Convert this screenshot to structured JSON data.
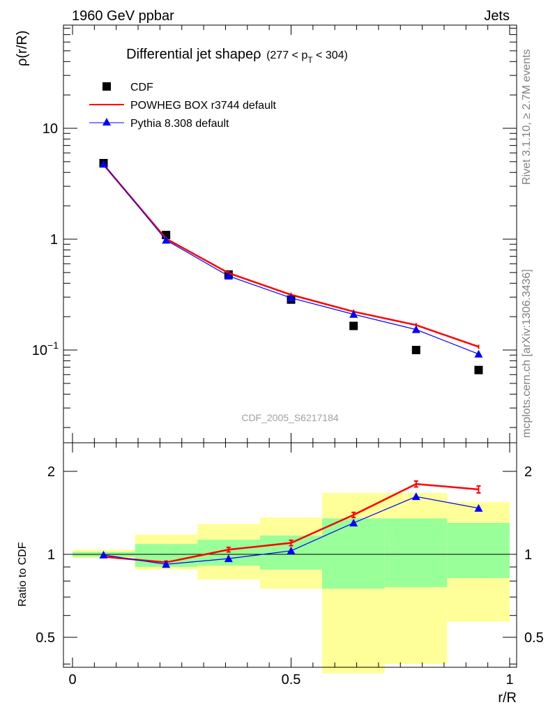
{
  "header": {
    "left": "1960 GeV ppbar",
    "right": "Jets"
  },
  "side_labels": {
    "rivet": "Rivet 3.1.10, ≥ 2.7M events",
    "mcplots": "mcplots.cern.ch [arXiv:1306.3436]"
  },
  "watermark": "CDF_2005_S6217184",
  "chart_data": [
    {
      "type": "line",
      "title": "Differential jet shape",
      "title_symbol": "ρ",
      "title_range": "(277 < p",
      "title_range_sub": "T",
      "title_range_end": " < 304)",
      "ylabel": "ρ(r/R)",
      "yscale": "log",
      "xlim": [
        0,
        1
      ],
      "ylim": [
        0.02,
        45
      ],
      "y_ticks": [
        {
          "value": 10,
          "label": "10"
        },
        {
          "value": 1,
          "label": "1"
        },
        {
          "value": 0.1,
          "label": "10",
          "exponent": "−1"
        }
      ],
      "legend_position": "top-left",
      "legend": [
        {
          "label": "CDF",
          "marker": "square",
          "color": "#000000"
        },
        {
          "label": "POWHEG BOX r3744 default",
          "marker": "line",
          "color": "#ff0000"
        },
        {
          "label": "Pythia 8.308 default",
          "marker": "triangle",
          "color": "#0000ff"
        }
      ],
      "x": [
        0.071,
        0.214,
        0.357,
        0.5,
        0.643,
        0.786,
        0.929
      ],
      "series": [
        {
          "name": "CDF",
          "color": "#000000",
          "marker": "square",
          "values": [
            4.85,
            1.09,
            0.48,
            0.285,
            0.165,
            0.1,
            0.066
          ]
        },
        {
          "name": "POWHEG BOX r3744 default",
          "color": "#ff0000",
          "marker": "none",
          "values": [
            4.7,
            1.01,
            0.495,
            0.315,
            0.222,
            0.168,
            0.107
          ]
        },
        {
          "name": "Pythia 8.308 default",
          "color": "#0000ff",
          "marker": "triangle",
          "values": [
            4.75,
            0.98,
            0.465,
            0.295,
            0.21,
            0.153,
            0.092
          ]
        }
      ]
    },
    {
      "type": "line",
      "ylabel": "Ratio to CDF",
      "xlabel": "r/R",
      "yscale": "log",
      "xlim": [
        0,
        1
      ],
      "ylim": [
        0.4,
        2.4
      ],
      "y_ticks": [
        {
          "value": 2,
          "label": "2"
        },
        {
          "value": 1,
          "label": "1"
        },
        {
          "value": 0.5,
          "label": "0.5"
        }
      ],
      "x_ticks": [
        {
          "value": 0,
          "label": "0"
        },
        {
          "value": 0.5,
          "label": "0.5"
        },
        {
          "value": 1,
          "label": "1"
        }
      ],
      "bands": {
        "bins": [
          0,
          0.143,
          0.286,
          0.429,
          0.571,
          0.714,
          0.857,
          1.0
        ],
        "outer": {
          "color": "#ffff99",
          "low": [
            0.97,
            0.88,
            0.81,
            0.75,
            0.37,
            0.4,
            0.57
          ],
          "high": [
            1.04,
            1.18,
            1.29,
            1.36,
            1.67,
            1.67,
            1.55
          ]
        },
        "inner": {
          "color": "#99ff99",
          "low": [
            0.98,
            0.9,
            0.91,
            0.88,
            0.75,
            0.76,
            0.82
          ],
          "high": [
            1.02,
            1.09,
            1.13,
            1.17,
            1.35,
            1.35,
            1.3
          ]
        }
      },
      "x": [
        0.071,
        0.214,
        0.357,
        0.5,
        0.643,
        0.786,
        0.929
      ],
      "series": [
        {
          "name": "POWHEG BOX r3744 default",
          "color": "#ff0000",
          "marker": "none",
          "values": [
            0.98,
            0.935,
            1.04,
            1.1,
            1.39,
            1.8,
            1.72
          ],
          "errors": [
            0.005,
            0.01,
            0.02,
            0.025,
            0.03,
            0.045,
            0.05
          ]
        },
        {
          "name": "Pythia 8.308 default",
          "color": "#0000ff",
          "marker": "triangle",
          "values": [
            0.995,
            0.92,
            0.965,
            1.03,
            1.3,
            1.62,
            1.47
          ]
        }
      ]
    }
  ]
}
